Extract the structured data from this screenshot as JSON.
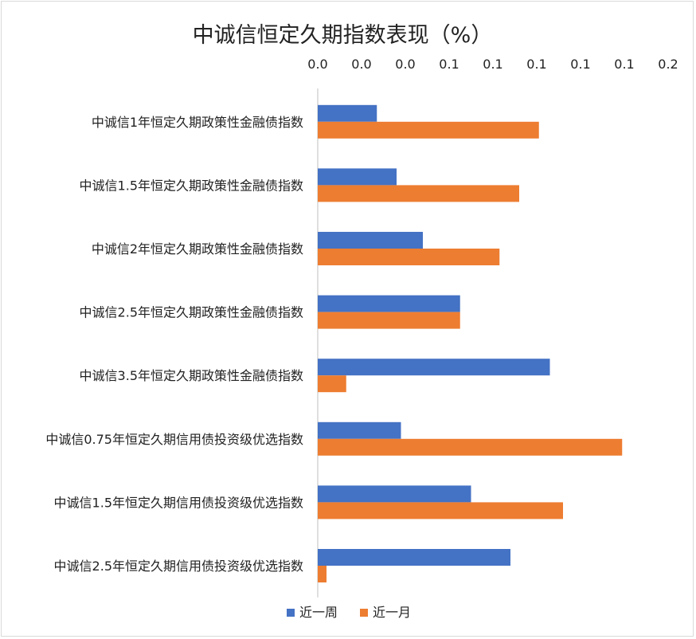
{
  "chart_data": {
    "type": "bar",
    "orientation": "horizontal",
    "title": "中诚信恒定久期指数表现（%）",
    "categories": [
      "中诚信1年恒定久期政策性金融债指数",
      "中诚信1.5年恒定久期政策性金融债指数",
      "中诚信2年恒定久期政策性金融债指数",
      "中诚信2.5年恒定久期政策性金融债指数",
      "中诚信3.5年恒定久期政策性金融债指数",
      "中诚信0.75年恒定久期信用债投资级优选指数",
      "中诚信1.5年恒定久期信用债投资级优选指数",
      "中诚信2.5年恒定久期信用债投资级优选指数"
    ],
    "series": [
      {
        "name": "近一周",
        "color": "#4472c4",
        "values": [
          0.027,
          0.036,
          0.048,
          0.065,
          0.106,
          0.038,
          0.07,
          0.088
        ]
      },
      {
        "name": "近一月",
        "color": "#ed7d31",
        "values": [
          0.101,
          0.092,
          0.083,
          0.065,
          0.013,
          0.139,
          0.112,
          0.004
        ]
      }
    ],
    "xlim": [
      0,
      0.16
    ],
    "x_tick_labels": [
      "0.0",
      "0.0",
      "0.0",
      "0.1",
      "0.1",
      "0.1",
      "0.1",
      "0.1",
      "0.2"
    ],
    "x_axis_position": "top",
    "grid": false,
    "legend": "bottom"
  }
}
